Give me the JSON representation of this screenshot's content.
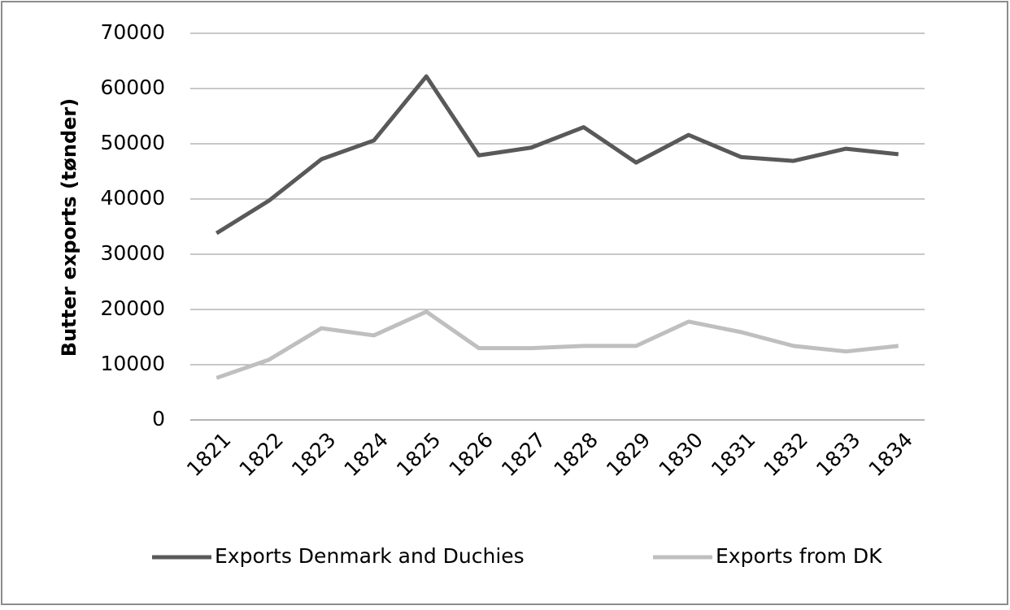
{
  "chart_data": {
    "type": "line",
    "y_label": "Butter exports (tønder)",
    "categories": [
      "1821",
      "1822",
      "1823",
      "1824",
      "1825",
      "1826",
      "1827",
      "1828",
      "1829",
      "1830",
      "1831",
      "1832",
      "1833",
      "1834"
    ],
    "series": [
      {
        "name": "Exports Denmark and Duchies",
        "color": "#595959",
        "values": [
          33800,
          39700,
          47200,
          50600,
          62200,
          47900,
          49300,
          53000,
          46600,
          51600,
          47600,
          46900,
          49100,
          48100
        ]
      },
      {
        "name": "Exports from DK",
        "color": "#bfbfbf",
        "values": [
          7600,
          10900,
          16600,
          15300,
          19600,
          13000,
          13000,
          13400,
          13400,
          17800,
          15900,
          13400,
          12400,
          13400
        ]
      }
    ],
    "ylim": [
      0,
      70000
    ],
    "yticks": [
      0,
      10000,
      20000,
      30000,
      40000,
      50000,
      60000,
      70000
    ],
    "grid": true,
    "legend": "bottom"
  }
}
